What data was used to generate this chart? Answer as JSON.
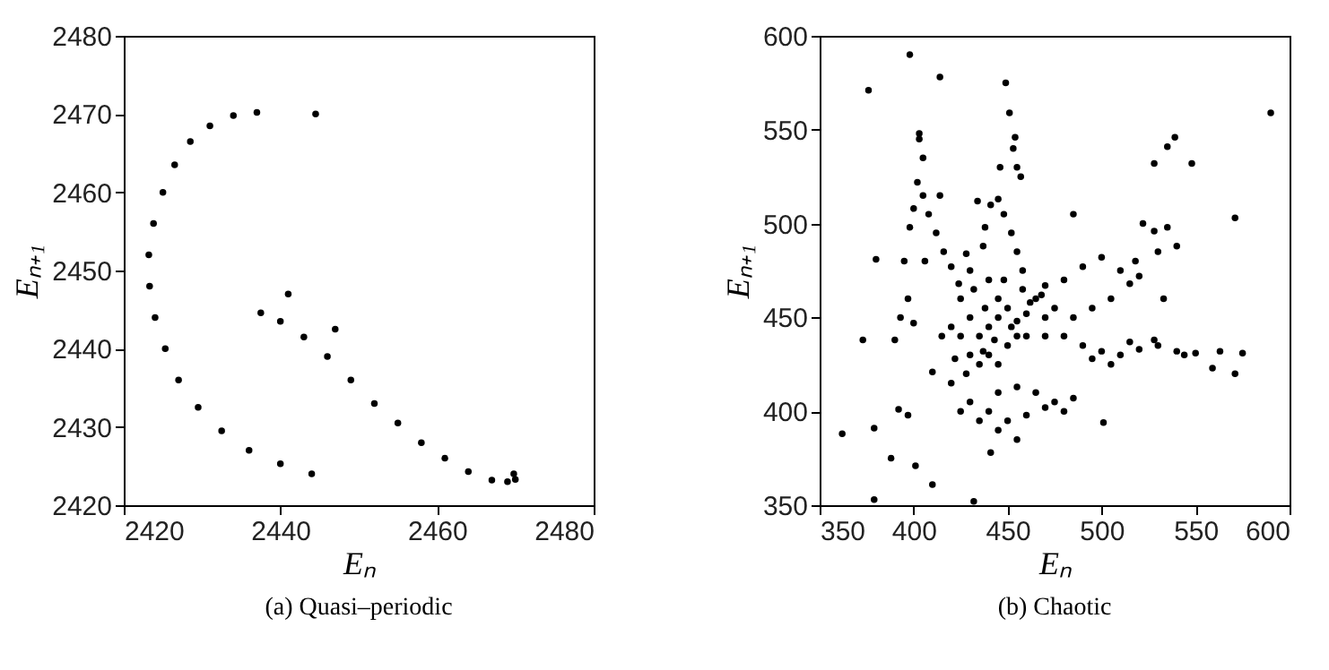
{
  "chart_data": [
    {
      "type": "scatter",
      "title": "(a) Quasi–periodic",
      "xlabel": "Eₙ",
      "ylabel": "Eₙ₊₁",
      "xlim": [
        2420,
        2480
      ],
      "ylim": [
        2420,
        2480
      ],
      "xticks": [
        2420,
        2440,
        2460,
        2480
      ],
      "yticks": [
        2420,
        2430,
        2440,
        2450,
        2460,
        2470,
        2480
      ],
      "grid": false,
      "legend": false,
      "marker": "circle",
      "series": [
        {
          "color": "#000000",
          "x": [
            2437,
            2434,
            2431,
            2428.5,
            2426.5,
            2425,
            2423.8,
            2423.2,
            2423.3,
            2424,
            2425.3,
            2427,
            2429.5,
            2432.5,
            2436,
            2440,
            2444,
            2437.5,
            2440,
            2443,
            2446,
            2449,
            2452,
            2455,
            2458,
            2461,
            2464,
            2467,
            2469,
            2470,
            2469.8,
            2444.5,
            2441,
            2447
          ],
          "values": [
            2470.2,
            2469.8,
            2468.5,
            2466.5,
            2463.5,
            2460,
            2456,
            2452,
            2448,
            2444,
            2440,
            2436,
            2432.5,
            2429.5,
            2427,
            2425.3,
            2424,
            2444.6,
            2443.5,
            2441.5,
            2439,
            2436,
            2433,
            2430.5,
            2428,
            2426,
            2424.3,
            2423.2,
            2423,
            2423.3,
            2424,
            2470,
            2447,
            2442.5
          ]
        }
      ]
    },
    {
      "type": "scatter",
      "title": "(b) Chaotic",
      "xlabel": "Eₙ",
      "ylabel": "Eₙ₊₁",
      "xlim": [
        350,
        600
      ],
      "ylim": [
        350,
        600
      ],
      "xticks": [
        350,
        400,
        450,
        500,
        550,
        600
      ],
      "yticks": [
        350,
        400,
        450,
        500,
        550,
        600
      ],
      "grid": false,
      "legend": false,
      "marker": "circle",
      "series": [
        {
          "color": "#000000",
          "x": [
            398,
            376,
            414,
            449,
            451,
            590,
            403,
            454,
            539,
            535,
            548,
            528,
            571,
            533,
            485,
            380,
            373,
            362,
            379,
            388,
            410,
            379,
            432,
            401,
            441,
            559,
            571,
            575,
            501,
            563,
            544,
            403,
            405,
            402,
            405,
            408,
            412,
            416,
            420,
            424,
            398,
            395,
            397,
            393,
            400,
            390,
            397,
            392,
            410,
            406,
            414,
            400,
            445,
            448,
            452,
            455,
            458,
            441,
            438,
            437,
            428,
            430,
            455,
            457,
            453,
            446,
            434,
            440,
            470,
            480,
            490,
            500,
            495,
            505,
            515,
            520,
            522,
            528,
            535,
            530,
            540,
            518,
            510,
            485,
            475,
            480,
            490,
            500,
            510,
            520,
            530,
            540,
            550,
            505,
            495,
            470,
            515,
            528,
            445,
            455,
            465,
            475,
            480,
            485,
            470,
            440,
            435,
            445,
            455,
            430,
            420,
            425,
            450,
            460,
            430,
            435,
            440,
            445,
            450,
            455,
            460,
            465,
            440,
            435,
            430,
            425,
            450,
            455,
            445,
            438,
            460,
            470,
            428,
            420,
            425,
            432,
            448,
            458,
            443,
            452,
            437,
            462,
            468,
            415,
            422,
            445
          ],
          "values": [
            590,
            571,
            578,
            575,
            559,
            559,
            548,
            546,
            546,
            541,
            532,
            532,
            503,
            460,
            505,
            481,
            438,
            388,
            391,
            375,
            361,
            353,
            352,
            371,
            378,
            423,
            420,
            431,
            394,
            432,
            430,
            545,
            535,
            522,
            515,
            505,
            495,
            485,
            477,
            468,
            498,
            480,
            460,
            450,
            447,
            438,
            398,
            401,
            421,
            480,
            515,
            508,
            513,
            505,
            495,
            485,
            475,
            510,
            498,
            488,
            484,
            475,
            530,
            525,
            540,
            530,
            512,
            470,
            467,
            470,
            477,
            482,
            455,
            460,
            468,
            472,
            500,
            496,
            498,
            485,
            488,
            480,
            475,
            450,
            455,
            440,
            435,
            432,
            430,
            433,
            435,
            432,
            431,
            425,
            428,
            440,
            437,
            438,
            410,
            413,
            410,
            405,
            400,
            407,
            402,
            400,
            395,
            390,
            385,
            405,
            415,
            400,
            395,
            398,
            450,
            440,
            445,
            450,
            455,
            448,
            452,
            460,
            430,
            425,
            430,
            440,
            435,
            440,
            460,
            455,
            440,
            450,
            420,
            445,
            460,
            465,
            470,
            465,
            438,
            445,
            432,
            458,
            462,
            440,
            428,
            425
          ]
        }
      ]
    }
  ]
}
